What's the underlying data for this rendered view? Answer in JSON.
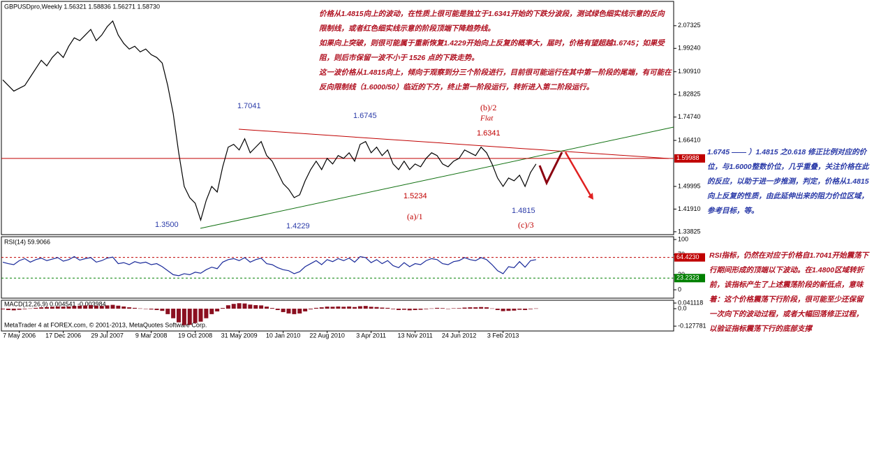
{
  "chart_data": [
    {
      "type": "line",
      "title": "GBPUSDpro,Weekly  1.56321 1.58836 1.56271 1.58730",
      "categories": [
        null,
        null,
        null,
        "7 May 2006",
        null,
        null,
        null,
        null,
        null,
        null,
        null,
        "17 Dec 2006",
        null,
        null,
        null,
        null,
        null,
        null,
        null,
        "29 Jul 2007",
        null,
        null,
        null,
        null,
        null,
        null,
        null,
        "9 Mar 2008",
        null,
        null,
        null,
        null,
        null,
        null,
        null,
        "19 Oct 2008",
        null,
        null,
        null,
        null,
        null,
        null,
        null,
        "31 May 2009",
        null,
        null,
        null,
        null,
        null,
        null,
        null,
        "10 Jan 2010",
        null,
        null,
        null,
        null,
        null,
        null,
        null,
        "22 Aug 2010",
        null,
        null,
        null,
        null,
        null,
        null,
        null,
        "3 Apr 2011",
        null,
        null,
        null,
        null,
        null,
        null,
        null,
        "13 Nov 2011",
        null,
        null,
        null,
        null,
        null,
        null,
        null,
        "24 Jun 2012",
        null,
        null,
        null,
        null,
        null,
        null,
        null,
        "3 Feb 2013",
        null,
        null,
        null,
        null,
        null,
        null
      ],
      "values": [
        1.88,
        1.86,
        1.84,
        1.85,
        1.86,
        1.89,
        1.92,
        1.95,
        1.93,
        1.96,
        1.98,
        1.96,
        2.0,
        2.03,
        2.02,
        2.04,
        2.06,
        2.02,
        2.04,
        2.07,
        2.09,
        2.04,
        2.01,
        1.99,
        2.0,
        1.98,
        1.99,
        1.97,
        1.96,
        1.94,
        1.86,
        1.76,
        1.62,
        1.5,
        1.46,
        1.44,
        1.38,
        1.45,
        1.5,
        1.48,
        1.57,
        1.64,
        1.65,
        1.63,
        1.67,
        1.62,
        1.64,
        1.66,
        1.61,
        1.59,
        1.55,
        1.51,
        1.49,
        1.46,
        1.47,
        1.52,
        1.56,
        1.59,
        1.56,
        1.6,
        1.58,
        1.61,
        1.6,
        1.62,
        1.59,
        1.65,
        1.66,
        1.62,
        1.64,
        1.61,
        1.63,
        1.58,
        1.56,
        1.59,
        1.56,
        1.58,
        1.57,
        1.6,
        1.62,
        1.61,
        1.58,
        1.57,
        1.59,
        1.6,
        1.63,
        1.62,
        1.61,
        1.64,
        1.62,
        1.58,
        1.53,
        1.5,
        1.53,
        1.52,
        1.54,
        1.5,
        1.55,
        1.58
      ],
      "color": "#000000",
      "ylim": [
        1.328,
        2.16
      ],
      "yticks": [
        2.07325,
        {
          "value": 1.9924,
          "label": "1.99240"
        },
        {
          "value": 1.9091,
          "label": "1.90910"
        },
        1.82825,
        {
          "value": 1.7474,
          "label": "1.74740"
        },
        {
          "value": 1.6641,
          "label": "1.66410"
        },
        1.49995,
        {
          "value": 1.4191,
          "label": "1.41910"
        },
        1.33825
      ],
      "hline": 1.59988,
      "annotations": [
        "1.7041",
        "1.6745",
        "(b)/2",
        "Flat",
        "1.6341",
        "1.5234",
        "1.4815",
        "1.3500",
        "1.4229",
        "(a)/1",
        "(c)/3"
      ],
      "footer": "MetaTrader 4 at FOREX.com, © 2001-2013, MetaQuotes Software Corp.",
      "notes": [
        "价格从1.4815向上的波动，在性质上很可能是独立于1.6341开始的下跌分波段，测试绿色细实线示意的反向限制线，或者红色细实线示意的阶段顶端下降趋势线。",
        "如果向上突破，则很可能属于重新恢复1.4229开始向上反复的概率大，届时，价格有望超越1.6745；如果受阻，则后市保留一波不小于 1526 点的下跌走势。",
        "这一波价格从1.4815向上，倾向于观察到分三个阶段进行，目前很可能运行在其中第一阶段的尾端，有可能在反向限制线（1.6000/50）临近的下方，终止第一阶段运行，转折进入第二阶段运行。",
        "1.6745 —— ）1.4815 之0.618 修正比例对应的价位，与1.6000整数价位，几乎重叠，关注价格在此的反应，以助于进一步推测，判定，价格从1.4815向上反复的性质，由此延伸出来的阻力价位区域，参考目标，等。",
        "RSI指标，仍然在对应于价格自1.7041开始震荡下行期间形成的顶端以下波动。在1.4800区域转折前，该指标产生了上述震荡阶段的新低点，意味着：这个价格震荡下行阶段，很可能至少还保留一次向下的波动过程，或者大幅回落修正过程，以验证指标震荡下行的底部支撑"
      ]
    },
    {
      "type": "line",
      "title": "RSI(14) 59.9066",
      "color": "#1a2a9a",
      "values": [
        55,
        52,
        50,
        58,
        62,
        55,
        60,
        63,
        58,
        61,
        64,
        57,
        60,
        66,
        59,
        62,
        64,
        55,
        58,
        63,
        65,
        52,
        54,
        50,
        56,
        53,
        55,
        50,
        52,
        46,
        38,
        30,
        28,
        32,
        30,
        35,
        33,
        40,
        45,
        42,
        55,
        60,
        62,
        58,
        64,
        55,
        60,
        63,
        52,
        50,
        44,
        40,
        38,
        32,
        36,
        46,
        52,
        58,
        50,
        60,
        56,
        62,
        58,
        63,
        55,
        66,
        64,
        54,
        60,
        52,
        58,
        48,
        44,
        54,
        46,
        52,
        50,
        58,
        62,
        60,
        52,
        50,
        56,
        58,
        64,
        60,
        58,
        64,
        60,
        50,
        38,
        32,
        46,
        44,
        56,
        45,
        58,
        60
      ],
      "ylim": [
        0,
        100
      ],
      "yticks": [
        100,
        70,
        30,
        0
      ],
      "levels": [
        {
          "value": 64.423,
          "label": "64.4230",
          "color": "#c00000"
        },
        {
          "value": 23.2323,
          "label": "23.2323",
          "color": "#008000"
        }
      ]
    },
    {
      "type": "bar",
      "title": "MACD(12,26,9) 0.004541 -0.003984",
      "color": "#8b1020",
      "values": [
        -0.005,
        -0.01,
        -0.012,
        -0.008,
        -0.004,
        0.002,
        0.006,
        0.01,
        0.012,
        0.014,
        0.016,
        0.015,
        0.016,
        0.02,
        0.022,
        0.024,
        0.026,
        0.022,
        0.02,
        0.024,
        0.028,
        0.022,
        0.016,
        0.01,
        0.006,
        0.002,
        -0.002,
        -0.006,
        -0.01,
        -0.016,
        -0.04,
        -0.07,
        -0.1,
        -0.12,
        -0.118,
        -0.105,
        -0.095,
        -0.07,
        -0.04,
        -0.02,
        0.005,
        0.025,
        0.035,
        0.04,
        0.038,
        0.03,
        0.026,
        0.024,
        0.015,
        0.005,
        -0.01,
        -0.025,
        -0.035,
        -0.04,
        -0.035,
        -0.02,
        -0.005,
        0.006,
        0.01,
        0.015,
        0.014,
        0.016,
        0.014,
        0.016,
        0.012,
        0.018,
        0.02,
        0.014,
        0.012,
        0.008,
        0.006,
        -0.004,
        -0.01,
        -0.008,
        -0.012,
        -0.01,
        -0.008,
        -0.004,
        0.002,
        0.006,
        0.004,
        0,
        0.003,
        0.004,
        0.008,
        0.01,
        0.01,
        0.012,
        0.01,
        0.002,
        -0.01,
        -0.018,
        -0.016,
        -0.014,
        -0.008,
        -0.01,
        -0.004,
        0.002
      ],
      "ylim": [
        -0.153,
        0.0616
      ],
      "yticks": [
        0.041118,
        {
          "value": 0,
          "label": "0.0"
        },
        -0.127781
      ]
    }
  ]
}
